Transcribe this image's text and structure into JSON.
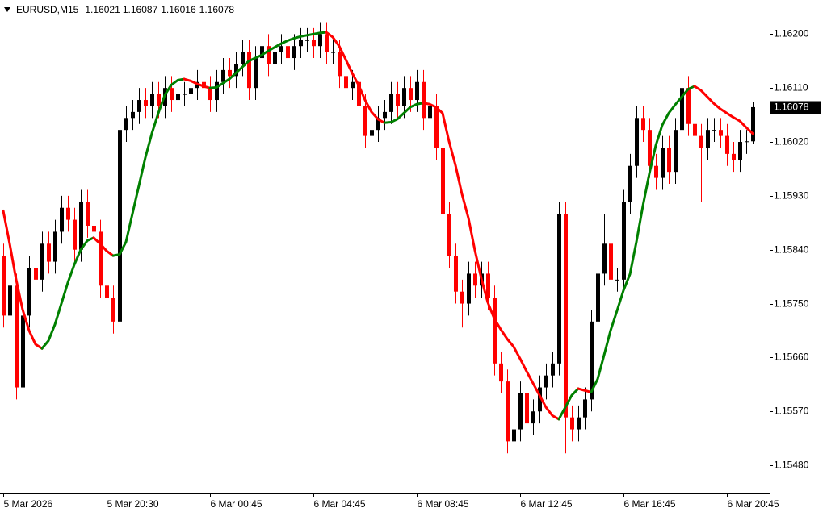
{
  "chart_data": {
    "type": "candlestick",
    "title": "EURUSD,M15",
    "categories": [
      "5 Mar 2026",
      null,
      null,
      null,
      null,
      null,
      null,
      null,
      null,
      null,
      null,
      null,
      null,
      null,
      null,
      null,
      "5 Mar 20:30",
      null,
      null,
      null,
      null,
      null,
      null,
      null,
      null,
      null,
      null,
      null,
      null,
      null,
      null,
      null,
      "6 Mar 00:45",
      null,
      null,
      null,
      null,
      null,
      null,
      null,
      null,
      null,
      null,
      null,
      null,
      null,
      null,
      null,
      "6 Mar 04:45",
      null,
      null,
      null,
      null,
      null,
      null,
      null,
      null,
      null,
      null,
      null,
      null,
      null,
      null,
      null,
      "6 Mar 08:45",
      null,
      null,
      null,
      null,
      null,
      null,
      null,
      null,
      null,
      null,
      null,
      null,
      null,
      null,
      null,
      "6 Mar 12:45",
      null,
      null,
      null,
      null,
      null,
      null,
      null,
      null,
      null,
      null,
      null,
      null,
      null,
      null,
      null,
      "6 Mar 16:45",
      null,
      null,
      null,
      null,
      null,
      null,
      null,
      null,
      null,
      null,
      null,
      null,
      null,
      null,
      null,
      "6 Mar 20:45",
      null,
      null,
      null,
      null
    ],
    "open": [
      1.1583,
      1.1573,
      1.1578,
      1.1561,
      1.1573,
      1.1581,
      1.1579,
      1.1585,
      1.1582,
      1.1587,
      1.1591,
      1.1589,
      1.1584,
      1.1592,
      1.1588,
      1.1587,
      1.1578,
      1.1576,
      1.1572,
      1.1604,
      1.1606,
      1.1607,
      1.1609,
      1.1608,
      1.161,
      1.1608,
      1.1611,
      1.1609,
      1.161,
      1.161,
      1.1611,
      1.1612,
      1.1611,
      1.1609,
      1.1612,
      1.1614,
      1.1613,
      1.1615,
      1.1617,
      1.1611,
      1.1616,
      1.1618,
      1.1615,
      1.1617,
      1.1618,
      1.1616,
      1.1618,
      1.1619,
      1.1619,
      1.1618,
      1.162,
      1.1617,
      1.1617,
      1.1613,
      1.1611,
      1.1612,
      1.1608,
      1.1603,
      1.1604,
      1.1606,
      1.1607,
      1.161,
      1.1608,
      1.1611,
      1.1609,
      1.1612,
      1.1606,
      1.1608,
      1.1601,
      1.159,
      1.1583,
      1.1577,
      1.1575,
      1.158,
      1.1578,
      1.158,
      1.1576,
      1.1565,
      1.1562,
      1.1552,
      1.1554,
      1.156,
      1.1555,
      1.1557,
      1.1561,
      1.1563,
      1.1565,
      1.159,
      1.1556,
      1.1554,
      1.1556,
      1.1559,
      1.1572,
      1.158,
      1.1585,
      1.1579,
      1.1579,
      1.1592,
      1.1598,
      1.1606,
      1.1604,
      1.1598,
      1.1596,
      1.1601,
      1.1597,
      1.1604,
      1.1611,
      1.1605,
      1.1603,
      1.1601,
      1.1604,
      1.1604,
      1.1603,
      1.16,
      1.1599,
      1.1602,
      1.16021
    ],
    "high": [
      1.1585,
      1.158,
      1.158,
      1.1575,
      1.1583,
      1.1583,
      1.1587,
      1.1587,
      1.1589,
      1.1593,
      1.1593,
      1.1591,
      1.1594,
      1.1594,
      1.159,
      1.1589,
      1.158,
      1.1578,
      1.1606,
      1.1608,
      1.1609,
      1.1611,
      1.1611,
      1.1612,
      1.1612,
      1.1613,
      1.1613,
      1.1612,
      1.1612,
      1.1613,
      1.1614,
      1.1614,
      1.1613,
      1.1614,
      1.1616,
      1.1616,
      1.1617,
      1.1619,
      1.1619,
      1.1618,
      1.162,
      1.162,
      1.1619,
      1.162,
      1.162,
      1.162,
      1.1621,
      1.1621,
      1.1621,
      1.1622,
      1.1622,
      1.1619,
      1.1619,
      1.1615,
      1.1614,
      1.1614,
      1.161,
      1.1606,
      1.1608,
      1.1609,
      1.1612,
      1.1612,
      1.1613,
      1.1613,
      1.1614,
      1.1614,
      1.161,
      1.161,
      1.1603,
      1.1592,
      1.1585,
      1.1579,
      1.1582,
      1.1582,
      1.1582,
      1.1582,
      1.1578,
      1.1567,
      1.1564,
      1.1556,
      1.1562,
      1.1562,
      1.1559,
      1.1563,
      1.1565,
      1.1567,
      1.1592,
      1.1592,
      1.1558,
      1.1558,
      1.1561,
      1.1574,
      1.1582,
      1.159,
      1.1587,
      1.1581,
      1.1594,
      1.16,
      1.1608,
      1.1608,
      1.1606,
      1.16,
      1.1603,
      1.1603,
      1.1606,
      1.1621,
      1.1613,
      1.1607,
      1.1605,
      1.1606,
      1.1606,
      1.1606,
      1.1605,
      1.1602,
      1.1604,
      1.1604,
      1.16087
    ],
    "low": [
      1.1571,
      1.1571,
      1.1559,
      1.1559,
      1.1571,
      1.1577,
      1.1577,
      1.158,
      1.158,
      1.1585,
      1.1587,
      1.1582,
      1.1582,
      1.1586,
      1.1585,
      1.1576,
      1.1574,
      1.157,
      1.157,
      1.1602,
      1.1604,
      1.1605,
      1.1606,
      1.1606,
      1.1606,
      1.1606,
      1.1607,
      1.1607,
      1.1608,
      1.1608,
      1.1609,
      1.1609,
      1.1607,
      1.1607,
      1.161,
      1.1611,
      1.1611,
      1.1613,
      1.1609,
      1.1609,
      1.1614,
      1.1613,
      1.1613,
      1.1615,
      1.1614,
      1.1614,
      1.1616,
      1.1617,
      1.1616,
      1.1616,
      1.1615,
      1.1615,
      1.1611,
      1.1609,
      1.1609,
      1.1606,
      1.1601,
      1.1601,
      1.1602,
      1.1604,
      1.1605,
      1.1606,
      1.1606,
      1.1607,
      1.1607,
      1.1604,
      1.1604,
      1.1599,
      1.1588,
      1.1581,
      1.1575,
      1.1571,
      1.1573,
      1.1576,
      1.1576,
      1.1574,
      1.1563,
      1.156,
      1.155,
      1.155,
      1.1552,
      1.1553,
      1.1553,
      1.1555,
      1.1559,
      1.1561,
      1.1563,
      1.155,
      1.1552,
      1.1552,
      1.1554,
      1.1557,
      1.157,
      1.1578,
      1.1577,
      1.1577,
      1.1577,
      1.159,
      1.1596,
      1.1602,
      1.1596,
      1.1594,
      1.1594,
      1.1595,
      1.1595,
      1.1602,
      1.1603,
      1.1601,
      1.1592,
      1.1599,
      1.1602,
      1.1601,
      1.1598,
      1.1597,
      1.1597,
      1.16,
      1.16016
    ],
    "close": [
      1.1573,
      1.1578,
      1.1561,
      1.1573,
      1.1581,
      1.1579,
      1.1585,
      1.1582,
      1.1587,
      1.1591,
      1.1589,
      1.1584,
      1.1592,
      1.1588,
      1.1587,
      1.1578,
      1.1576,
      1.1572,
      1.1604,
      1.1606,
      1.1607,
      1.1609,
      1.1608,
      1.161,
      1.1608,
      1.1611,
      1.1609,
      1.161,
      1.161,
      1.1611,
      1.1612,
      1.1611,
      1.1609,
      1.1612,
      1.1614,
      1.1613,
      1.1615,
      1.1617,
      1.1611,
      1.1616,
      1.1618,
      1.1615,
      1.1617,
      1.1618,
      1.1616,
      1.1618,
      1.1619,
      1.1619,
      1.1618,
      1.162,
      1.1617,
      1.1617,
      1.1613,
      1.1611,
      1.1612,
      1.1608,
      1.1603,
      1.1604,
      1.1606,
      1.1607,
      1.161,
      1.1608,
      1.1611,
      1.1609,
      1.1612,
      1.1606,
      1.1608,
      1.1601,
      1.159,
      1.1583,
      1.1577,
      1.1575,
      1.158,
      1.1578,
      1.158,
      1.1576,
      1.1565,
      1.1562,
      1.1552,
      1.1554,
      1.156,
      1.1555,
      1.1557,
      1.1561,
      1.1563,
      1.1565,
      1.159,
      1.1556,
      1.1554,
      1.1556,
      1.1559,
      1.1572,
      1.158,
      1.1585,
      1.1579,
      1.1579,
      1.1592,
      1.1598,
      1.1606,
      1.1604,
      1.1598,
      1.1596,
      1.1601,
      1.1597,
      1.1604,
      1.1611,
      1.1605,
      1.1603,
      1.1601,
      1.1604,
      1.1604,
      1.1603,
      1.16,
      1.1599,
      1.1602,
      1.16021,
      1.16078
    ],
    "up_color": "#000000",
    "down_color": "#ff0000",
    "indicator": {
      "values": [
        1.15905,
        1.1585,
        1.1579,
        1.1574,
        1.15705,
        1.15682,
        1.15675,
        1.15688,
        1.15715,
        1.1575,
        1.15785,
        1.15815,
        1.1584,
        1.15855,
        1.1586,
        1.1585,
        1.15838,
        1.1583,
        1.15832,
        1.15853,
        1.159,
        1.15947,
        1.15994,
        1.16034,
        1.16068,
        1.16098,
        1.16115,
        1.16123,
        1.16125,
        1.16122,
        1.16117,
        1.16113,
        1.1611,
        1.16111,
        1.16118,
        1.16125,
        1.16135,
        1.16145,
        1.16155,
        1.1616,
        1.16165,
        1.16172,
        1.16178,
        1.16184,
        1.16189,
        1.16193,
        1.16196,
        1.16198,
        1.162,
        1.16202,
        1.16203,
        1.16195,
        1.1618,
        1.16158,
        1.16135,
        1.16115,
        1.1609,
        1.1607,
        1.16058,
        1.16052,
        1.16053,
        1.16058,
        1.16068,
        1.16078,
        1.16083,
        1.16085,
        1.16083,
        1.16078,
        1.16068,
        1.16021,
        1.15981,
        1.15933,
        1.15893,
        1.15839,
        1.15792,
        1.15752,
        1.15725,
        1.15707,
        1.15691,
        1.15678,
        1.15658,
        1.15637,
        1.15617,
        1.15597,
        1.15577,
        1.15563,
        1.15557,
        1.15577,
        1.15597,
        1.15608,
        1.15605,
        1.15602,
        1.15624,
        1.15664,
        1.15705,
        1.15738,
        1.15772,
        1.15799,
        1.15853,
        1.15913,
        1.15967,
        1.16014,
        1.16048,
        1.16068,
        1.16082,
        1.16095,
        1.16108,
        1.16113,
        1.16106,
        1.16095,
        1.16084,
        1.16075,
        1.16068,
        1.16061,
        1.16055,
        1.16044,
        1.16034
      ],
      "up_color": "#008000",
      "down_color": "#ff0000"
    },
    "ylim": [
      1.15433,
      1.16257
    ],
    "yticks": [
      {
        "value": 1.162,
        "label": "1.16200"
      },
      {
        "value": 1.1611,
        "label": "1.16110"
      },
      {
        "value": 1.1602,
        "label": "1.16020"
      },
      {
        "value": 1.1593,
        "label": "1.15930"
      },
      {
        "value": 1.1584,
        "label": "1.15840"
      },
      {
        "value": 1.1575,
        "label": "1.15750"
      },
      {
        "value": 1.1566,
        "label": "1.15660"
      },
      {
        "value": 1.1557,
        "label": "1.15570"
      },
      {
        "value": 1.1548,
        "label": "1.15480"
      }
    ]
  }
}
